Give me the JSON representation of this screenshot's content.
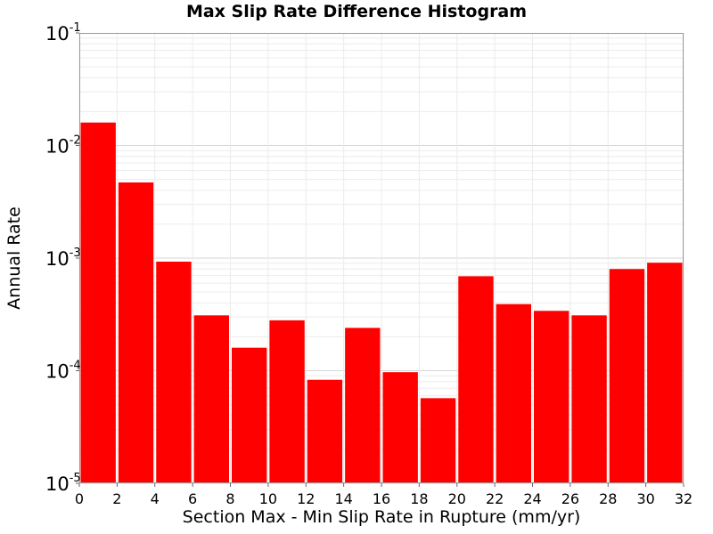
{
  "chart_data": {
    "type": "bar",
    "title": "Max Slip Rate Difference Histogram",
    "xlabel": "Section Max - Min Slip Rate in Rupture (mm/yr)",
    "ylabel": "Annual Rate",
    "y_scale": "log",
    "xlim": [
      0,
      32
    ],
    "ylim": [
      1e-05,
      0.1
    ],
    "grid": true,
    "legend": "none",
    "bar_color": "#ff0000",
    "x_ticks": [
      0,
      2,
      4,
      6,
      8,
      10,
      12,
      14,
      16,
      18,
      20,
      22,
      24,
      26,
      28,
      30,
      32
    ],
    "y_ticks": [
      {
        "value": 0.1,
        "base": "10",
        "exp": "-1"
      },
      {
        "value": 0.01,
        "base": "10",
        "exp": "-2"
      },
      {
        "value": 0.001,
        "base": "10",
        "exp": "-3"
      },
      {
        "value": 0.0001,
        "base": "10",
        "exp": "-4"
      },
      {
        "value": 1e-05,
        "base": "10",
        "exp": "-5"
      }
    ],
    "bin_width": 2,
    "bins": [
      {
        "x_start": 0,
        "value": 0.016
      },
      {
        "x_start": 2,
        "value": 0.0047
      },
      {
        "x_start": 4,
        "value": 0.00093
      },
      {
        "x_start": 6,
        "value": 0.00031
      },
      {
        "x_start": 8,
        "value": 0.00016
      },
      {
        "x_start": 10,
        "value": 0.00028
      },
      {
        "x_start": 12,
        "value": 8.3e-05
      },
      {
        "x_start": 14,
        "value": 0.00024
      },
      {
        "x_start": 16,
        "value": 9.7e-05
      },
      {
        "x_start": 18,
        "value": 5.7e-05
      },
      {
        "x_start": 20,
        "value": 0.00069
      },
      {
        "x_start": 22,
        "value": 0.00039
      },
      {
        "x_start": 24,
        "value": 0.00034
      },
      {
        "x_start": 26,
        "value": 0.00031
      },
      {
        "x_start": 28,
        "value": 0.0008
      },
      {
        "x_start": 30,
        "value": 0.00091
      }
    ]
  }
}
